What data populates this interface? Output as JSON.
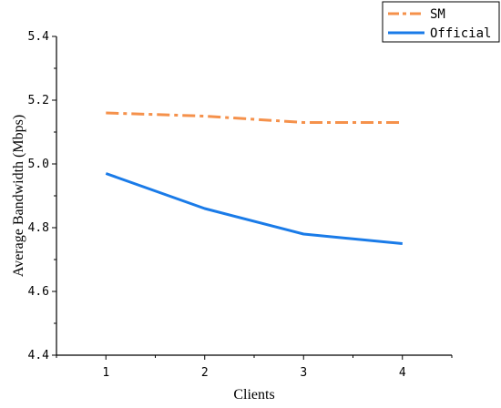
{
  "chart_data": {
    "type": "line",
    "xlabel": "Clients",
    "ylabel": "Average Bandwidth (Mbps)",
    "x": [
      1,
      2,
      3,
      4
    ],
    "x_tick_labels": [
      "1",
      "2",
      "3",
      "4"
    ],
    "xlim": [
      0.5,
      4.5
    ],
    "ylim": [
      4.4,
      5.4
    ],
    "y_ticks": [
      4.4,
      4.6,
      4.8,
      5.0,
      5.2,
      5.4
    ],
    "y_tick_labels": [
      "4.4",
      "4.6",
      "4.8",
      "5.0",
      "5.2",
      "5.4"
    ],
    "grid": false,
    "legend_position": "top-right",
    "series": [
      {
        "name": "SM",
        "values": [
          5.16,
          5.15,
          5.13,
          5.13
        ],
        "color": "#F5914B",
        "line_style": "dash-dot"
      },
      {
        "name": "Official",
        "values": [
          4.97,
          4.86,
          4.78,
          4.75
        ],
        "color": "#1A7BE8",
        "line_style": "solid"
      }
    ]
  }
}
